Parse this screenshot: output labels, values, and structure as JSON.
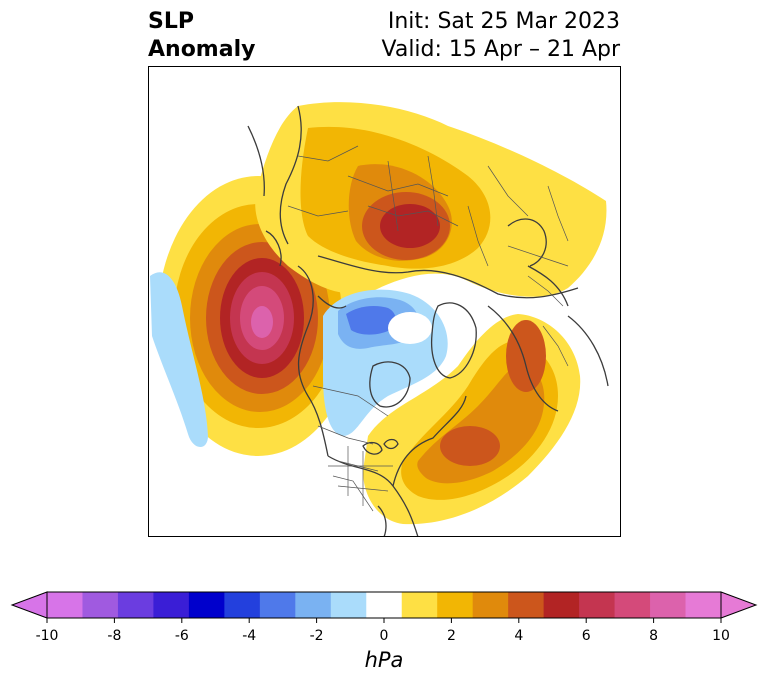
{
  "header": {
    "title_line1": "SLP",
    "title_line2": "Anomaly",
    "init_text": "Init: Sat 25 Mar 2023",
    "valid_text": "Valid: 15 Apr – 21 Apr"
  },
  "colorbar": {
    "unit": "hPa",
    "ticks": [
      "-10",
      "-8",
      "-6",
      "-4",
      "-2",
      "0",
      "2",
      "4",
      "6",
      "8",
      "10"
    ],
    "colors": [
      "#d774e8",
      "#a05ae0",
      "#6b3de0",
      "#3a1ed6",
      "#0000cc",
      "#2340dd",
      "#4f79ea",
      "#7ab2f2",
      "#aadcfb",
      "#ffffff",
      "#fee044",
      "#f2b604",
      "#e08a0c",
      "#cc561c",
      "#b22424",
      "#c43550",
      "#d44a7a",
      "#dc62ac",
      "#e67ad6"
    ],
    "under_color": "#d774e8",
    "over_color": "#e67ad6"
  },
  "map": {
    "features": [
      "coastlines",
      "country-borders",
      "us-state-borders"
    ],
    "anomaly_centers": [
      {
        "region": "northeast-pacific",
        "sign": "positive",
        "peak_hpa": 10
      },
      {
        "region": "scandinavia-barents",
        "sign": "positive",
        "peak_hpa": 6
      },
      {
        "region": "north-atlantic",
        "sign": "positive",
        "peak_hpa": 5
      },
      {
        "region": "eastern-siberia",
        "sign": "positive",
        "peak_hpa": 5
      },
      {
        "region": "canadian-archipelago",
        "sign": "negative",
        "peak_hpa": -4
      }
    ]
  }
}
